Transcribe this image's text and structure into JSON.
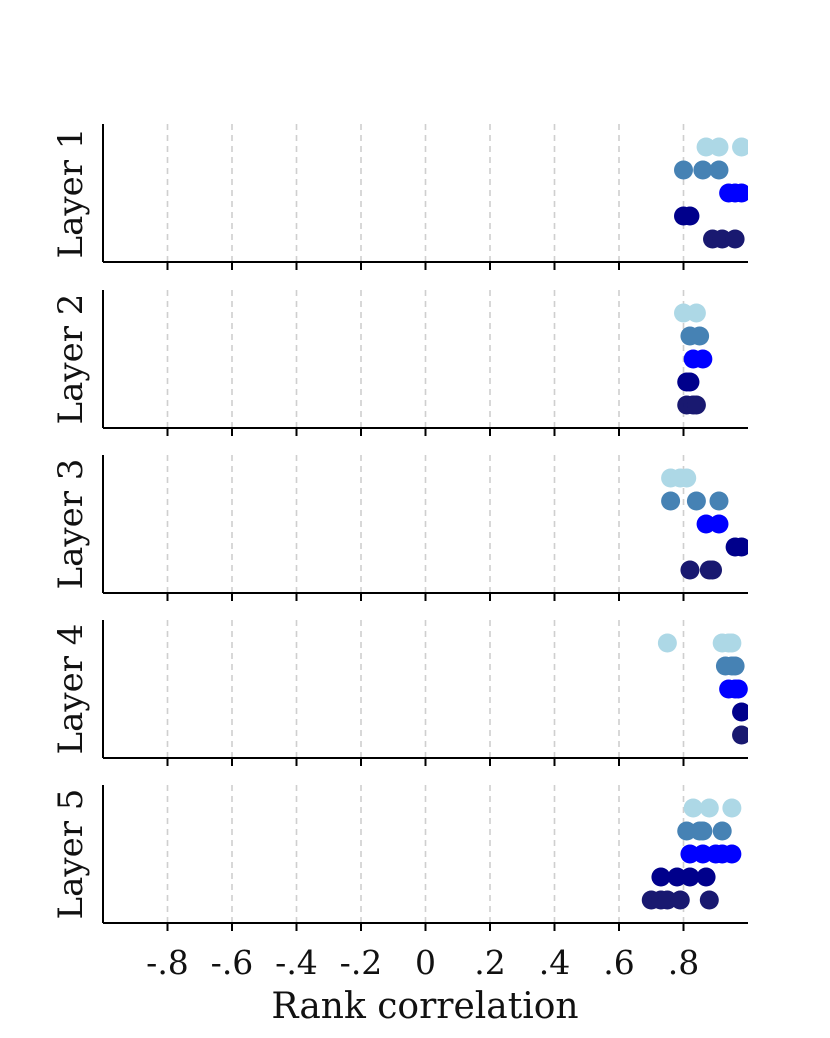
{
  "chart_data": {
    "type": "scatter",
    "xlabel": "Rank correlation",
    "xlim": [
      -1.0,
      1.0
    ],
    "xticks": [
      -0.8,
      -0.6,
      -0.4,
      -0.2,
      0,
      0.2,
      0.4,
      0.6,
      0.8
    ],
    "xtick_labels": [
      "-.8",
      "-.6",
      "-.4",
      "-.2",
      "0",
      ".2",
      ".4",
      ".6",
      ".8"
    ],
    "grid": "vertical dashed at x ticks",
    "series_colors": [
      "#add8e6",
      "#4682b4",
      "#0000ff",
      "#00008b",
      "#191970"
    ],
    "panels": [
      {
        "label": "Layer 1",
        "rows": [
          [
            0.87,
            0.91,
            0.98
          ],
          [
            0.8,
            0.86,
            0.91
          ],
          [
            0.94,
            0.96,
            0.98
          ],
          [
            0.8,
            0.82
          ],
          [
            0.89,
            0.92,
            0.96
          ]
        ]
      },
      {
        "label": "Layer 2",
        "rows": [
          [
            0.8,
            0.84
          ],
          [
            0.82,
            0.85
          ],
          [
            0.83,
            0.86
          ],
          [
            0.81,
            0.82
          ],
          [
            0.81,
            0.83,
            0.84
          ]
        ]
      },
      {
        "label": "Layer 3",
        "rows": [
          [
            0.76,
            0.79,
            0.81
          ],
          [
            0.76,
            0.84,
            0.91
          ],
          [
            0.87,
            0.91
          ],
          [
            0.96,
            0.98
          ],
          [
            0.82,
            0.88,
            0.89
          ]
        ]
      },
      {
        "label": "Layer 4",
        "rows": [
          [
            0.75,
            0.92,
            0.94,
            0.95
          ],
          [
            0.93,
            0.95,
            0.96
          ],
          [
            0.94,
            0.96,
            0.97
          ],
          [
            0.98
          ],
          [
            0.98
          ]
        ]
      },
      {
        "label": "Layer 5",
        "rows": [
          [
            0.83,
            0.88,
            0.95
          ],
          [
            0.81,
            0.85,
            0.86,
            0.92
          ],
          [
            0.82,
            0.86,
            0.9,
            0.92,
            0.95
          ],
          [
            0.73,
            0.78,
            0.82,
            0.87
          ],
          [
            0.7,
            0.73,
            0.75,
            0.79,
            0.88
          ]
        ]
      }
    ]
  }
}
